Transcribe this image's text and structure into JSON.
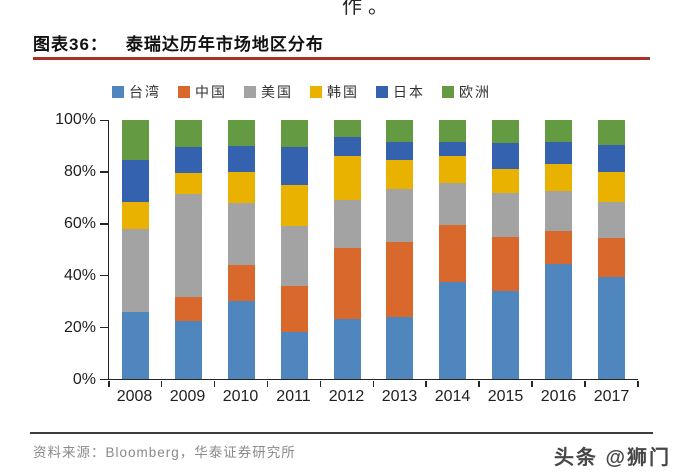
{
  "page": {
    "fragment_top": "作。",
    "watermark": "头条 @狮门"
  },
  "figure": {
    "label": "图表36：",
    "title": "泰瑞达历年市场地区分布",
    "source": "资料来源：Bloomberg，华泰证券研究所",
    "accent_color": "#A93226"
  },
  "chart_data": {
    "type": "bar",
    "subtype": "100%-stacked-column",
    "stacked": true,
    "title": "泰瑞达历年市场地区分布",
    "xlabel": "",
    "ylabel": "",
    "ylim": [
      0,
      100
    ],
    "yticks": [
      "0%",
      "20%",
      "40%",
      "60%",
      "80%",
      "100%"
    ],
    "gridlines": false,
    "legend_position": "top",
    "categories": [
      "2008",
      "2009",
      "2010",
      "2011",
      "2012",
      "2013",
      "2014",
      "2015",
      "2016",
      "2017"
    ],
    "series": [
      {
        "name": "台湾",
        "color": "#4E86BD",
        "values": [
          26,
          22.5,
          30,
          18,
          23,
          24,
          37.5,
          34,
          44.5,
          39.5
        ]
      },
      {
        "name": "中国",
        "color": "#D9682C",
        "values": [
          0,
          9,
          14,
          18,
          27.5,
          29,
          22,
          21,
          12.5,
          15
        ]
      },
      {
        "name": "美国",
        "color": "#A3A3A3",
        "values": [
          32,
          40,
          24,
          23,
          18.5,
          20.5,
          16,
          17,
          15.5,
          14
        ]
      },
      {
        "name": "韩国",
        "color": "#EAB200",
        "values": [
          10.5,
          8,
          12,
          16,
          17,
          11,
          10.5,
          9,
          10.5,
          11.5
        ]
      },
      {
        "name": "日本",
        "color": "#3562AE",
        "values": [
          16,
          10,
          10,
          14.5,
          7.5,
          7,
          5.5,
          10,
          8.5,
          10.5
        ]
      },
      {
        "name": "欧洲",
        "color": "#649A41",
        "values": [
          15.5,
          10.5,
          10,
          10.5,
          6.5,
          8.5,
          8.5,
          9,
          8.5,
          9.5
        ]
      }
    ]
  }
}
